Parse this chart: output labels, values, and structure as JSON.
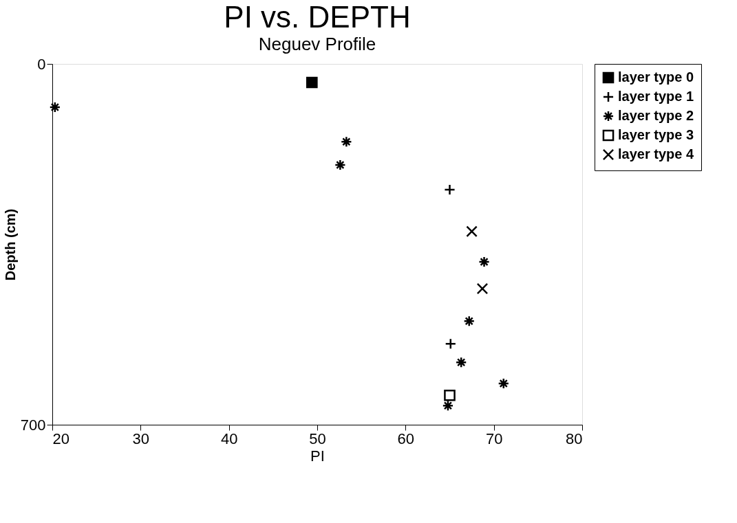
{
  "chart_data": {
    "type": "scatter",
    "title": "PI vs. DEPTH",
    "subtitle": "Neguev Profile",
    "xlabel": "PI",
    "ylabel": "Depth (cm)",
    "xlim": [
      20,
      80
    ],
    "xticks": [
      20,
      30,
      40,
      50,
      60,
      70,
      80
    ],
    "ylim": [
      700,
      0
    ],
    "yticks": [
      0,
      700
    ],
    "grid": false,
    "legend": "right",
    "series": [
      {
        "name": "layer type 0",
        "color": "#000000",
        "x": [
          49.4
        ],
        "values": [
          36
        ]
      },
      {
        "name": "layer type 1",
        "color": "#000000",
        "x": [
          65.0,
          65.1
        ],
        "values": [
          244,
          543
        ]
      },
      {
        "name": "layer type 2",
        "color": "#000000",
        "x": [
          20.3,
          53.3,
          52.6,
          68.9,
          67.2,
          66.3,
          71.1,
          64.8
        ],
        "values": [
          84,
          151,
          196,
          384,
          499,
          579,
          620,
          663
        ]
      },
      {
        "name": "layer type 3",
        "color": "#000000",
        "x": [
          65.0
        ],
        "values": [
          643
        ]
      },
      {
        "name": "layer type 4",
        "color": "#000000",
        "x": [
          67.5,
          68.7
        ],
        "values": [
          325,
          436
        ]
      }
    ]
  }
}
